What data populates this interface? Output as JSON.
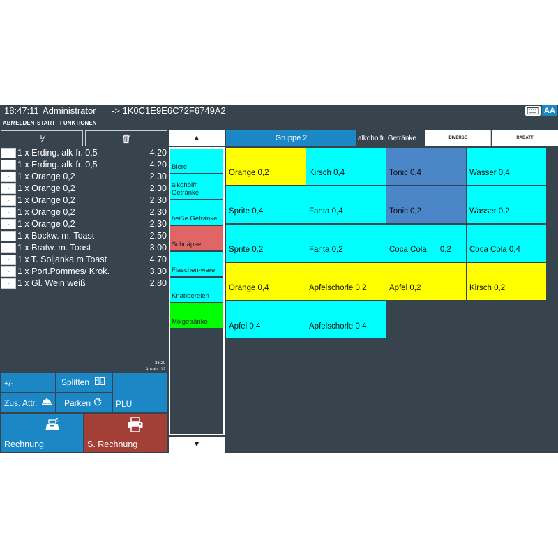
{
  "header": {
    "clock": "18:47:11",
    "user": "Administrator",
    "table_id": "-> 1K0C1E9E6C72F6749A2",
    "font_button": "AA"
  },
  "menu": [
    "ABMELDEN",
    "START",
    "FUNKTIONEN"
  ],
  "receipt": {
    "split_symbol": "⅟",
    "items": [
      {
        "text": "1 x Erding. alk-fr. 0,5",
        "price": "4.20"
      },
      {
        "text": "1 x Erding. alk-fr. 0,5",
        "price": "4.20"
      },
      {
        "text": "1 x Orange 0,2",
        "price": "2.30"
      },
      {
        "text": "1 x Orange 0,2",
        "price": "2.30"
      },
      {
        "text": "1 x Orange 0,2",
        "price": "2.30"
      },
      {
        "text": "1 x Orange 0,2",
        "price": "2.30"
      },
      {
        "text": "1 x Orange 0,2",
        "price": "2.30"
      },
      {
        "text": "1 x Bockw. m. Toast",
        "price": "2.50"
      },
      {
        "text": "1 x Bratw. m. Toast",
        "price": "3.00"
      },
      {
        "text": "1 x T. Soljanka m Toast",
        "price": "4.70"
      },
      {
        "text": "1 x Port.Pommes/ Krok.",
        "price": "3.30"
      },
      {
        "text": "1 x Gl. Wein weiß",
        "price": "2.80"
      }
    ],
    "total": "36.20",
    "count": "Anzahl: 12"
  },
  "actions": {
    "plus_minus": "+/-",
    "split": "Splitten",
    "extra": "Zus. Attr.",
    "park": "Parken",
    "plu": "PLU",
    "invoice": "Rechnung",
    "s_invoice": "S. Rechnung"
  },
  "categories": [
    {
      "label": "Biere",
      "color": "#00ffff"
    },
    {
      "label": "alkoholfr. Getränke",
      "color": "#00ffff"
    },
    {
      "label": "heiße Getränke",
      "color": "#00ffff"
    },
    {
      "label": "Schnäpse",
      "color": "#e06666"
    },
    {
      "label": "Flaschen-ware",
      "color": "#00ffff"
    },
    {
      "label": "Knabbereien",
      "color": "#00ffff"
    },
    {
      "label": "Mixgetränke",
      "color": "#00ff00"
    }
  ],
  "tabs": {
    "group": "Gruppe 2",
    "subgroup": "alkoholfr. Getränke",
    "diverse": "DIVERSE",
    "rabatt": "RABATT"
  },
  "products": [
    [
      {
        "label": "Orange 0,2",
        "color": "#ffff00"
      },
      {
        "label": "Kirsch 0,4",
        "color": "#00ffff"
      },
      {
        "label": "Tonic 0,4",
        "color": "#4a86c8"
      },
      {
        "label": "Wasser 0,4",
        "color": "#00ffff"
      }
    ],
    [
      {
        "label": "Sprite 0,4",
        "color": "#00ffff"
      },
      {
        "label": "Fanta 0,4",
        "color": "#00ffff"
      },
      {
        "label": "Tonic 0,2",
        "color": "#4a86c8"
      },
      {
        "label": "Wasser 0,2",
        "color": "#00ffff"
      }
    ],
    [
      {
        "label": "Sprite 0,2",
        "color": "#00ffff"
      },
      {
        "label": "Fanta 0,2",
        "color": "#00ffff"
      },
      {
        "label": "Coca Cola      0,2",
        "color": "#00ffff"
      },
      {
        "label": "Coca Cola 0,4",
        "color": "#00ffff"
      }
    ],
    [
      {
        "label": "Orange 0,4",
        "color": "#ffff00"
      },
      {
        "label": "Apfelschorle 0,2",
        "color": "#ffff00"
      },
      {
        "label": "Apfel 0,2",
        "color": "#ffff00"
      },
      {
        "label": "Kirsch 0,2",
        "color": "#ffff00"
      }
    ],
    [
      {
        "label": "Apfel 0,4",
        "color": "#00ffff"
      },
      {
        "label": "Apfelschorle 0,4",
        "color": "#00ffff"
      }
    ]
  ]
}
